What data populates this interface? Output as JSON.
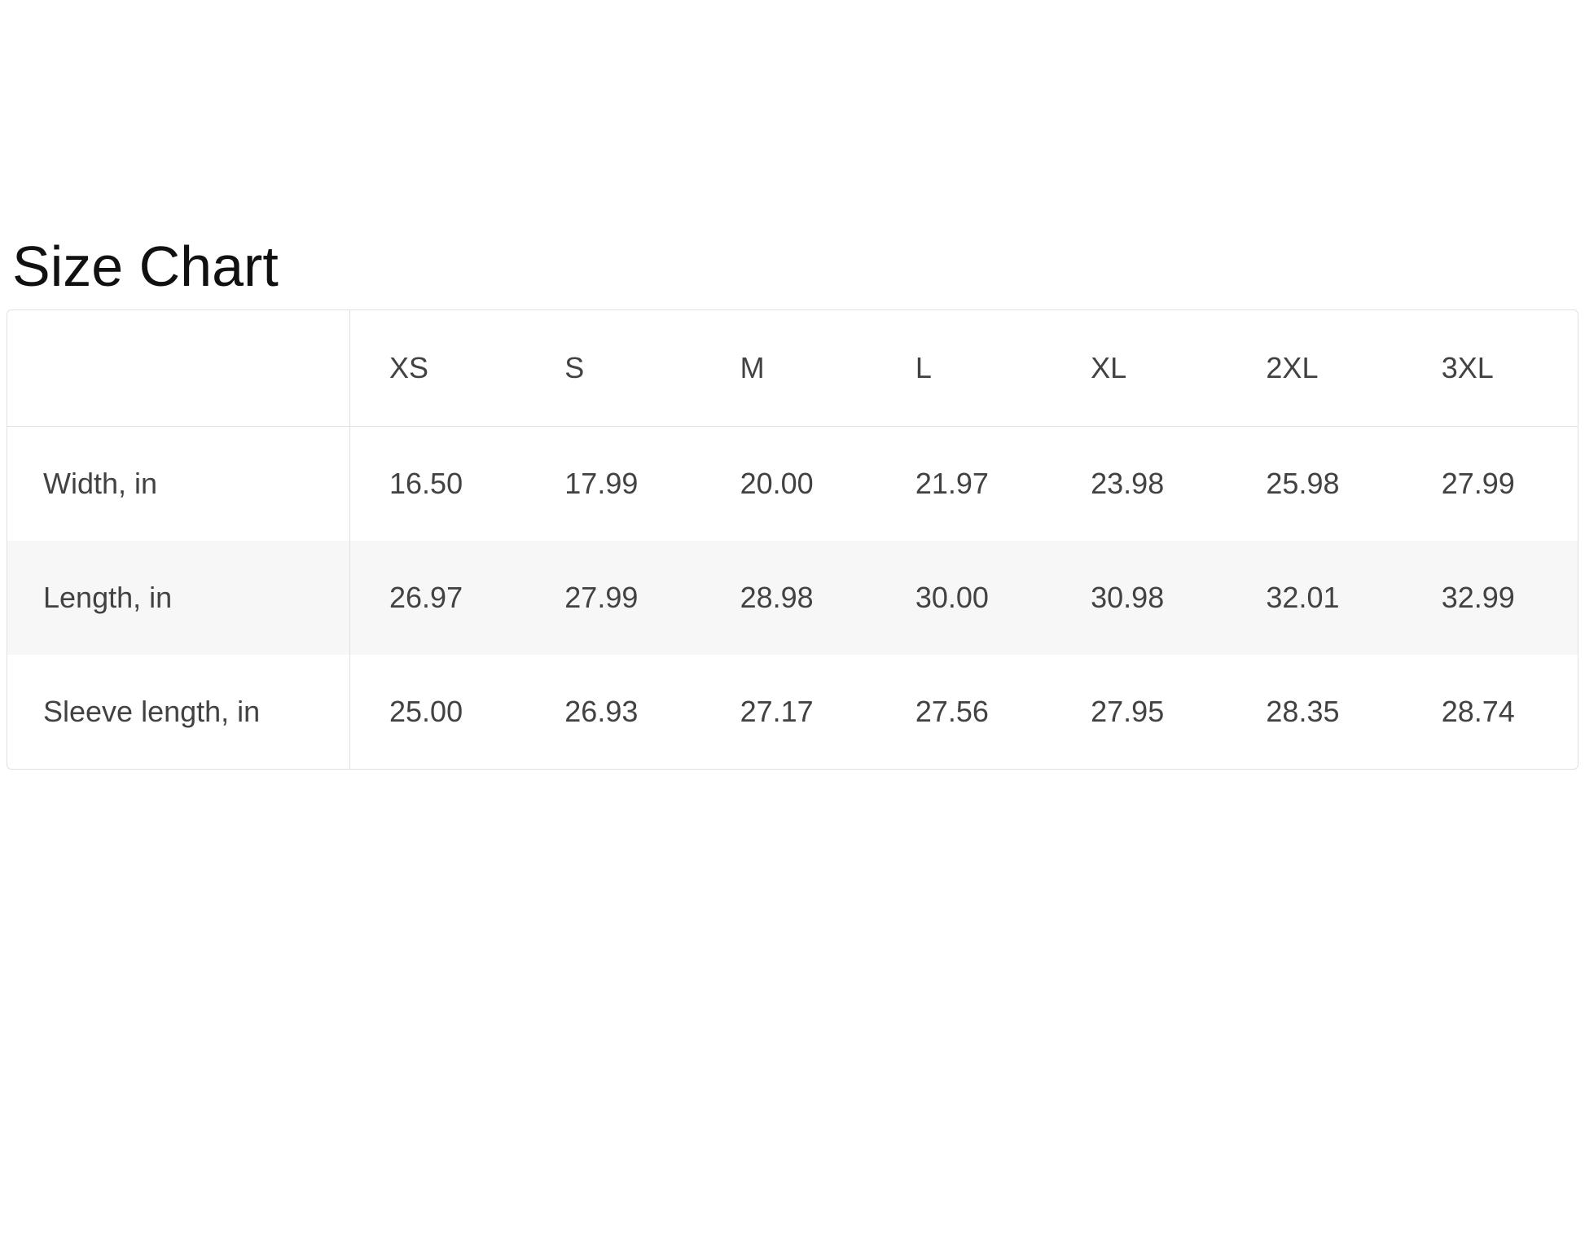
{
  "page": {
    "title": "Size Chart"
  },
  "style": {
    "stripe_color": "#f7f7f7",
    "border_color": "#e0e0e0",
    "table_text_color": "#424242",
    "title_color": "#111111",
    "background_color": "#ffffff"
  },
  "chart_data": {
    "type": "table",
    "title": "Size Chart",
    "columns": [
      "",
      "XS",
      "S",
      "M",
      "L",
      "XL",
      "2XL",
      "3XL"
    ],
    "rows": [
      {
        "label": "Width, in",
        "values": [
          "16.50",
          "17.99",
          "20.00",
          "21.97",
          "23.98",
          "25.98",
          "27.99"
        ]
      },
      {
        "label": "Length, in",
        "values": [
          "26.97",
          "27.99",
          "28.98",
          "30.00",
          "30.98",
          "32.01",
          "32.99"
        ]
      },
      {
        "label": "Sleeve length, in",
        "values": [
          "25.00",
          "26.93",
          "27.17",
          "27.56",
          "27.95",
          "28.35",
          "28.74"
        ]
      }
    ],
    "layout": {
      "striped_row_index": 1,
      "grid": "outer border, header underline, first-column divider only",
      "value_alignment": "left"
    }
  }
}
